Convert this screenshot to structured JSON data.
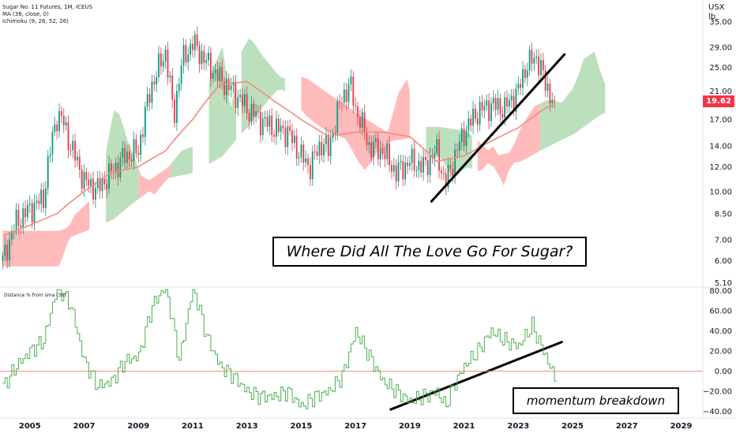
{
  "legend": {
    "symbol": "Sugar No. 11 Futures, 1M, ICEUS",
    "ma": "MA (36, close, 0)",
    "ichimoku": "Ichimoku (9, 26, 52, 26)"
  },
  "price_axis": {
    "unit_top": "USX",
    "unit_bottom": "lb",
    "ticks": [
      "35.00",
      "29.00",
      "25.00",
      "21.00",
      "17.00",
      "14.00",
      "12.00",
      "10.00",
      "8.50",
      "7.00",
      "6.00",
      "5.10"
    ],
    "last_price_label": "19.62"
  },
  "oscillator": {
    "title": "Distance % from sma (36)",
    "ticks": [
      "80.00",
      "60.00",
      "40.00",
      "20.00",
      "0.00",
      "−20.00",
      "−40.00"
    ]
  },
  "time_axis": {
    "labels": [
      "2005",
      "2007",
      "2009",
      "2011",
      "2013",
      "2015",
      "2017",
      "2019",
      "2021",
      "2023",
      "2025",
      "2027",
      "2029"
    ]
  },
  "annotations": {
    "title": "Where Did All The Love Go For Sugar?",
    "momentum": "momentum breakdown"
  },
  "colors": {
    "up_candle": "#089981",
    "down_candle": "#f23645",
    "ma_line": "#f28b82",
    "cloud_bull": "#a5d6a7",
    "cloud_bear": "#ffa4a4",
    "oscillator": "#4caf50",
    "zero_line": "#f28b82",
    "trendline": "#000000"
  },
  "chart_data": [
    {
      "type": "line",
      "title": "Sugar No. 11 Futures, 1M, ICEUS",
      "y_scale": "log",
      "ylim": [
        5.0,
        37.0
      ],
      "xlim": [
        2003.9,
        2029.8
      ],
      "series": [
        {
          "name": "Sugar No. 11 Futures",
          "x": [
            2004.0,
            2004.5,
            2005.0,
            2005.5,
            2006.0,
            2006.2,
            2006.5,
            2007.0,
            2007.5,
            2008.0,
            2008.5,
            2009.0,
            2009.5,
            2010.0,
            2010.3,
            2010.6,
            2011.0,
            2011.5,
            2012.0,
            2012.5,
            2013.0,
            2013.5,
            2014.0,
            2014.5,
            2015.0,
            2015.3,
            2015.8,
            2016.0,
            2016.5,
            2016.8,
            2017.0,
            2017.5,
            2018.0,
            2018.5,
            2019.0,
            2019.5,
            2020.0,
            2020.3,
            2020.6,
            2021.0,
            2021.5,
            2022.0,
            2022.5,
            2023.0,
            2023.3,
            2023.7,
            2024.0,
            2024.3
          ],
          "values": [
            6.0,
            8.0,
            8.8,
            9.5,
            17.5,
            17.0,
            14.0,
            10.8,
            10.2,
            11.5,
            13.0,
            13.5,
            22.0,
            28.0,
            17.0,
            26.0,
            30.0,
            26.0,
            23.0,
            21.0,
            18.5,
            17.0,
            16.0,
            15.5,
            13.0,
            12.0,
            14.5,
            13.5,
            20.0,
            22.0,
            18.5,
            14.0,
            13.5,
            11.5,
            12.5,
            12.0,
            13.5,
            10.5,
            12.5,
            15.5,
            18.0,
            19.0,
            18.5,
            21.0,
            25.5,
            27.0,
            22.0,
            19.62
          ]
        },
        {
          "name": "MA (36, close, 0)",
          "x": [
            2004.0,
            2005.0,
            2006.0,
            2007.0,
            2008.0,
            2009.0,
            2010.0,
            2011.0,
            2012.0,
            2013.0,
            2014.0,
            2015.0,
            2016.0,
            2017.0,
            2018.0,
            2019.0,
            2020.0,
            2021.0,
            2022.0,
            2023.0,
            2024.0,
            2024.3
          ],
          "values": [
            7.2,
            7.8,
            8.5,
            10.0,
            11.5,
            12.0,
            13.5,
            17.0,
            22.0,
            22.5,
            19.5,
            17.0,
            15.0,
            15.5,
            15.5,
            15.0,
            12.5,
            13.0,
            14.5,
            16.0,
            18.5,
            19.0
          ]
        }
      ],
      "xlabel": "",
      "ylabel": ""
    },
    {
      "type": "line",
      "title": "Distance % from sma (36)",
      "ylim": [
        -45,
        82
      ],
      "series": [
        {
          "name": "Distance % from sma (36)",
          "x": [
            2004.0,
            2004.5,
            2005.0,
            2005.5,
            2006.0,
            2006.5,
            2007.0,
            2007.5,
            2008.0,
            2008.5,
            2009.0,
            2009.5,
            2010.0,
            2010.5,
            2011.0,
            2011.5,
            2012.0,
            2012.5,
            2013.0,
            2013.5,
            2014.0,
            2014.5,
            2015.0,
            2015.5,
            2016.0,
            2016.5,
            2017.0,
            2017.5,
            2018.0,
            2018.5,
            2019.0,
            2019.5,
            2020.0,
            2020.3,
            2020.6,
            2021.0,
            2021.5,
            2022.0,
            2022.5,
            2023.0,
            2023.5,
            2024.0,
            2024.3
          ],
          "values": [
            -15,
            5,
            20,
            30,
            85,
            65,
            10,
            -15,
            -10,
            10,
            15,
            65,
            85,
            10,
            85,
            35,
            5,
            -5,
            -20,
            -25,
            -25,
            -20,
            -35,
            -25,
            -20,
            -5,
            40,
            15,
            -10,
            -20,
            -30,
            -25,
            -20,
            -35,
            -15,
            5,
            20,
            40,
            30,
            25,
            45,
            15,
            -5
          ]
        }
      ],
      "xlabel": "",
      "ylabel": ""
    }
  ]
}
